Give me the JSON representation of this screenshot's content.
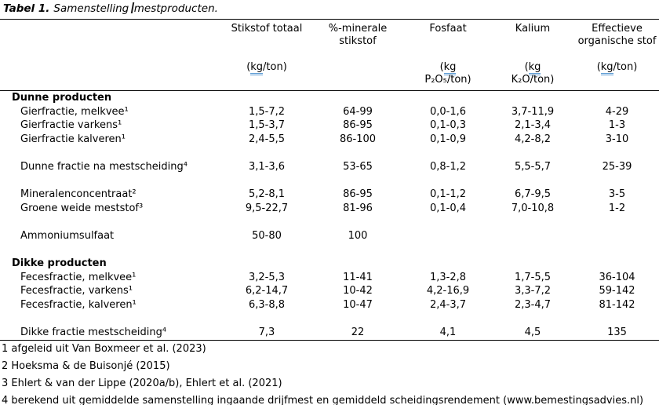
{
  "title": {
    "label": "Tabel 1.",
    "part1": "Samenstelling",
    "part2": "mestproducten."
  },
  "grammar": {
    "word": "kg",
    "underline_color": "#5b9bd5"
  },
  "colors": {
    "text": "#000000",
    "rule": "#000000",
    "background": "#ffffff"
  },
  "table": {
    "columns": [
      {
        "name": "",
        "unit_lines": []
      },
      {
        "name": "Stikstof totaal",
        "unit_lines": [
          "(kg/ton)"
        ]
      },
      {
        "name": "%-minerale stikstof",
        "unit_lines": []
      },
      {
        "name": "Fosfaat",
        "unit_lines": [
          "(kg",
          "P₂O₅/ton)"
        ]
      },
      {
        "name": "Kalium",
        "unit_lines": [
          "(kg",
          "K₂O/ton)"
        ]
      },
      {
        "name": "Effectieve organische stof",
        "unit_lines": [
          "(kg/ton)"
        ]
      }
    ],
    "rows": [
      {
        "type": "section",
        "label": "Dunne producten",
        "values": [
          "",
          "",
          "",
          "",
          ""
        ]
      },
      {
        "type": "item",
        "label": "Gierfractie, melkvee¹",
        "values": [
          "1,5-7,2",
          "64-99",
          "0,0-1,6",
          "3,7-11,9",
          "4-29"
        ]
      },
      {
        "type": "item",
        "label": "Gierfractie varkens¹",
        "values": [
          "1,5-3,7",
          "86-95",
          "0,1-0,3",
          "2,1-3,4",
          "1-3"
        ]
      },
      {
        "type": "item",
        "label": "Gierfractie kalveren¹",
        "values": [
          "2,4-5,5",
          "86-100",
          "0,1-0,9",
          "4,2-8,2",
          "3-10"
        ]
      },
      {
        "type": "spacer",
        "label": "",
        "values": [
          "",
          "",
          "",
          "",
          ""
        ]
      },
      {
        "type": "item",
        "label": "Dunne fractie na mestscheiding⁴",
        "values": [
          "3,1-3,6",
          "53-65",
          "0,8-1,2",
          "5,5-5,7",
          "25-39"
        ]
      },
      {
        "type": "spacer",
        "label": "",
        "values": [
          "",
          "",
          "",
          "",
          ""
        ]
      },
      {
        "type": "item",
        "label": "Mineralenconcentraat²",
        "values": [
          "5,2-8,1",
          "86-95",
          "0,1-1,2",
          "6,7-9,5",
          "3-5"
        ]
      },
      {
        "type": "item",
        "label": "Groene weide meststof³",
        "values": [
          "9,5-22,7",
          "81-96",
          "0,1-0,4",
          "7,0-10,8",
          "1-2"
        ]
      },
      {
        "type": "spacer",
        "label": "",
        "values": [
          "",
          "",
          "",
          "",
          ""
        ]
      },
      {
        "type": "item",
        "label": "Ammoniumsulfaat",
        "values": [
          "50-80",
          "100",
          "",
          "",
          ""
        ]
      },
      {
        "type": "spacer",
        "label": "",
        "values": [
          "",
          "",
          "",
          "",
          ""
        ]
      },
      {
        "type": "section",
        "label": "Dikke producten",
        "values": [
          "",
          "",
          "",
          "",
          ""
        ]
      },
      {
        "type": "item",
        "label": "Fecesfractie, melkvee¹",
        "values": [
          "3,2-5,3",
          "11-41",
          "1,3-2,8",
          "1,7-5,5",
          "36-104"
        ]
      },
      {
        "type": "item",
        "label": "Fecesfractie, varkens¹",
        "values": [
          "6,2-14,7",
          "10-42",
          "4,2-16,9",
          "3,3-7,2",
          "59-142"
        ]
      },
      {
        "type": "item",
        "label": "Fecesfractie, kalveren¹",
        "values": [
          "6,3-8,8",
          "10-47",
          "2,4-3,7",
          "2,3-4,7",
          "81-142"
        ]
      },
      {
        "type": "spacer",
        "label": "",
        "values": [
          "",
          "",
          "",
          "",
          ""
        ]
      },
      {
        "type": "item",
        "label": "Dikke fractie mestscheiding⁴",
        "values": [
          "7,3",
          "22",
          "4,1",
          "4,5",
          "135"
        ]
      }
    ]
  },
  "footnotes": [
    "1 afgeleid uit Van Boxmeer et al. (2023)",
    "2 Hoeksma & de Buisonjé (2015)",
    "3 Ehlert & van der Lippe (2020a/b), Ehlert et al. (2021)",
    "4 berekend uit gemiddelde samenstelling ingaande drijfmest en gemiddeld scheidingsrendement (www.bemestingsadvies.nl)"
  ]
}
